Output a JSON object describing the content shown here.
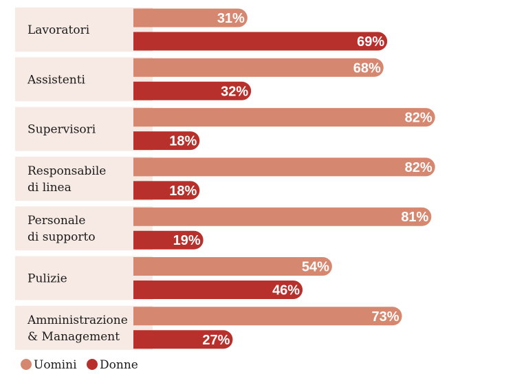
{
  "chart_data": {
    "type": "bar",
    "orientation": "horizontal",
    "title": "",
    "categories": [
      [
        "Lavoratori"
      ],
      [
        "Assistenti"
      ],
      [
        "Supervisori"
      ],
      [
        "Responsabile",
        "di linea"
      ],
      [
        "Personale",
        "di supporto"
      ],
      [
        "Pulizie"
      ],
      [
        "Amministrazione",
        "& Management"
      ]
    ],
    "series": [
      {
        "name": "Uomini",
        "color": "#d6876f",
        "values": [
          31,
          68,
          82,
          82,
          81,
          54,
          73
        ]
      },
      {
        "name": "Donne",
        "color": "#b8302b",
        "values": [
          69,
          32,
          18,
          18,
          19,
          46,
          27
        ]
      }
    ],
    "value_suffix": "%",
    "xlim": [
      0,
      100
    ],
    "grid": false,
    "legend_position": "bottom-left",
    "colors": {
      "label_background": "#f7e9e3"
    }
  }
}
